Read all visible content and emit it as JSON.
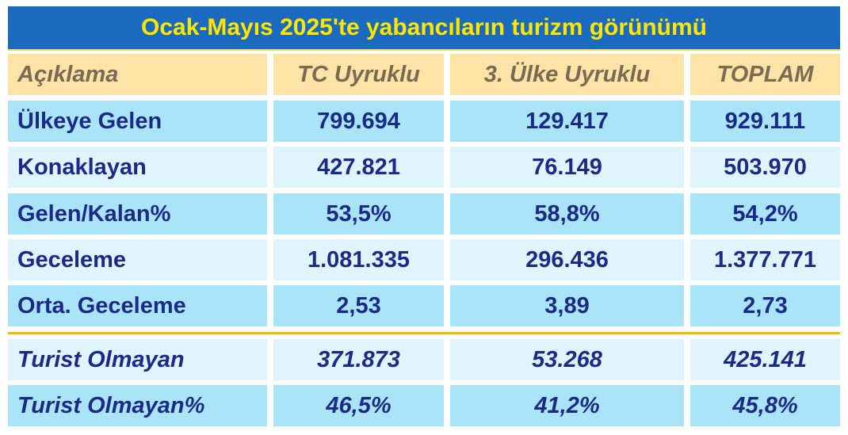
{
  "title": "Ocak-Mayıs 2025'te yabancıların turizm görünümü",
  "table": {
    "header": [
      "Açıklama",
      "TC Uyruklu",
      "3. Ülke Uyruklu",
      "TOPLAM"
    ],
    "rows": [
      [
        "Ülkeye Gelen",
        "799.694",
        "129.417",
        "929.111"
      ],
      [
        "Konaklayan",
        "427.821",
        "76.149",
        "503.970"
      ],
      [
        "Gelen/Kalan%",
        "53,5%",
        "58,8%",
        "54,2%"
      ],
      [
        "Geceleme",
        "1.081.335",
        "296.436",
        "1.377.771"
      ],
      [
        "Orta. Geceleme",
        "2,53",
        "3,89",
        "2,73"
      ],
      [
        "Turist Olmayan",
        "371.873",
        "53.268",
        "425.141"
      ],
      [
        "Turist Olmayan%",
        "46,5%",
        "41,2%",
        "45,8%"
      ]
    ]
  }
}
